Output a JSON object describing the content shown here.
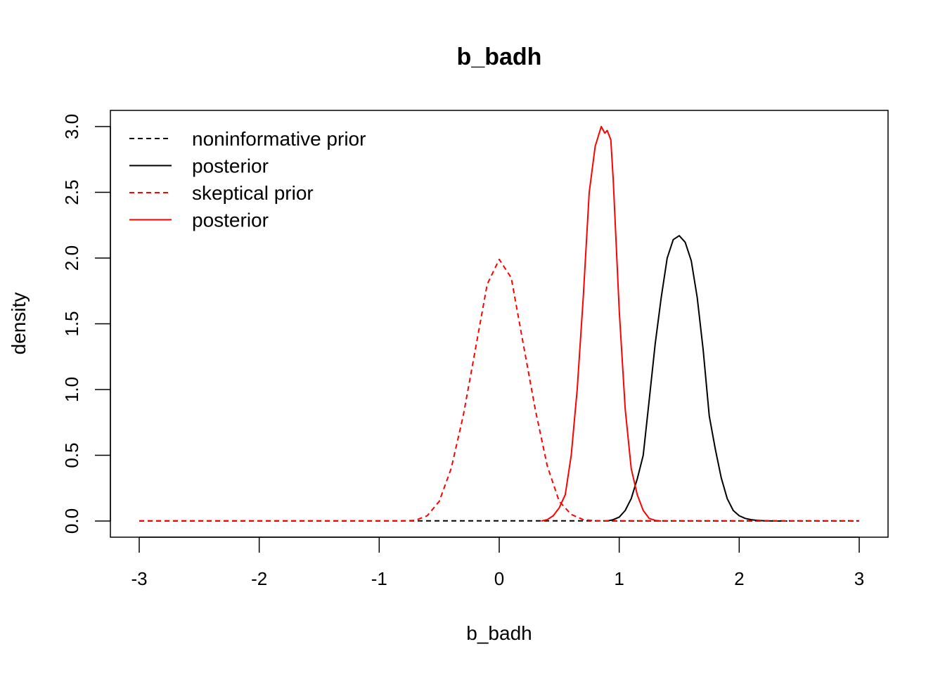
{
  "chart_data": {
    "type": "line",
    "title": "b_badh",
    "xlabel": "b_badh",
    "ylabel": "density",
    "xlim": [
      -3,
      3
    ],
    "ylim": [
      0,
      3
    ],
    "x_ticks": [
      -3,
      -2,
      -1,
      0,
      1,
      2,
      3
    ],
    "x_tick_labels": [
      "-3",
      "-2",
      "-1",
      "0",
      "1",
      "2",
      "3"
    ],
    "y_ticks": [
      0,
      0.5,
      1,
      1.5,
      2,
      2.5,
      3
    ],
    "y_tick_labels": [
      "0.0",
      "0.5",
      "1.0",
      "1.5",
      "2.0",
      "2.5",
      "3.0"
    ],
    "grid": false,
    "legend_position": "top-left",
    "series": [
      {
        "name": "noninformative prior",
        "color": "#000000",
        "dash": "dashed",
        "x": [
          -3,
          -2,
          -1,
          0,
          1,
          2,
          3
        ],
        "y": [
          0.001,
          0.001,
          0.001,
          0.001,
          0.001,
          0.001,
          0.001
        ]
      },
      {
        "name": "posterior",
        "color": "#000000",
        "dash": "solid",
        "x": [
          0.9,
          0.95,
          1.0,
          1.05,
          1.1,
          1.15,
          1.2,
          1.25,
          1.3,
          1.35,
          1.4,
          1.45,
          1.5,
          1.55,
          1.6,
          1.65,
          1.7,
          1.75,
          1.8,
          1.85,
          1.9,
          1.95,
          2.0,
          2.05,
          2.1,
          2.15,
          2.2,
          2.3,
          2.4
        ],
        "y": [
          0.0,
          0.01,
          0.03,
          0.08,
          0.17,
          0.32,
          0.5,
          0.92,
          1.35,
          1.7,
          2.0,
          2.14,
          2.17,
          2.12,
          1.98,
          1.7,
          1.3,
          0.8,
          0.55,
          0.33,
          0.17,
          0.08,
          0.04,
          0.02,
          0.01,
          0.005,
          0.002,
          0.0,
          0.0
        ]
      },
      {
        "name": "skeptical prior",
        "color": "#ff0000",
        "dash": "dashed",
        "x": [
          -3,
          -2,
          -1.0,
          -0.8,
          -0.7,
          -0.6,
          -0.5,
          -0.4,
          -0.3,
          -0.2,
          -0.1,
          0.0,
          0.1,
          0.2,
          0.3,
          0.4,
          0.5,
          0.6,
          0.7,
          0.8,
          0.9,
          1.0,
          2.0,
          3.0
        ],
        "y": [
          0.0,
          0.0,
          0.0,
          0.001,
          0.005,
          0.04,
          0.15,
          0.4,
          0.8,
          1.3,
          1.8,
          1.99,
          1.85,
          1.35,
          0.85,
          0.42,
          0.15,
          0.05,
          0.01,
          0.002,
          0.0,
          0.0,
          0.0,
          0.0
        ]
      },
      {
        "name": "posterior",
        "color": "#ff0000",
        "dash": "solid",
        "x": [
          0.35,
          0.4,
          0.45,
          0.5,
          0.55,
          0.6,
          0.65,
          0.7,
          0.75,
          0.8,
          0.85,
          0.88,
          0.9,
          0.93,
          0.95,
          1.0,
          1.05,
          1.1,
          1.15,
          1.2,
          1.25,
          1.3,
          1.35
        ],
        "y": [
          0.0,
          0.01,
          0.04,
          0.1,
          0.2,
          0.5,
          1.0,
          1.7,
          2.5,
          2.85,
          3.0,
          2.95,
          2.97,
          2.9,
          2.6,
          1.6,
          0.85,
          0.4,
          0.2,
          0.08,
          0.02,
          0.005,
          0.0
        ]
      }
    ]
  }
}
